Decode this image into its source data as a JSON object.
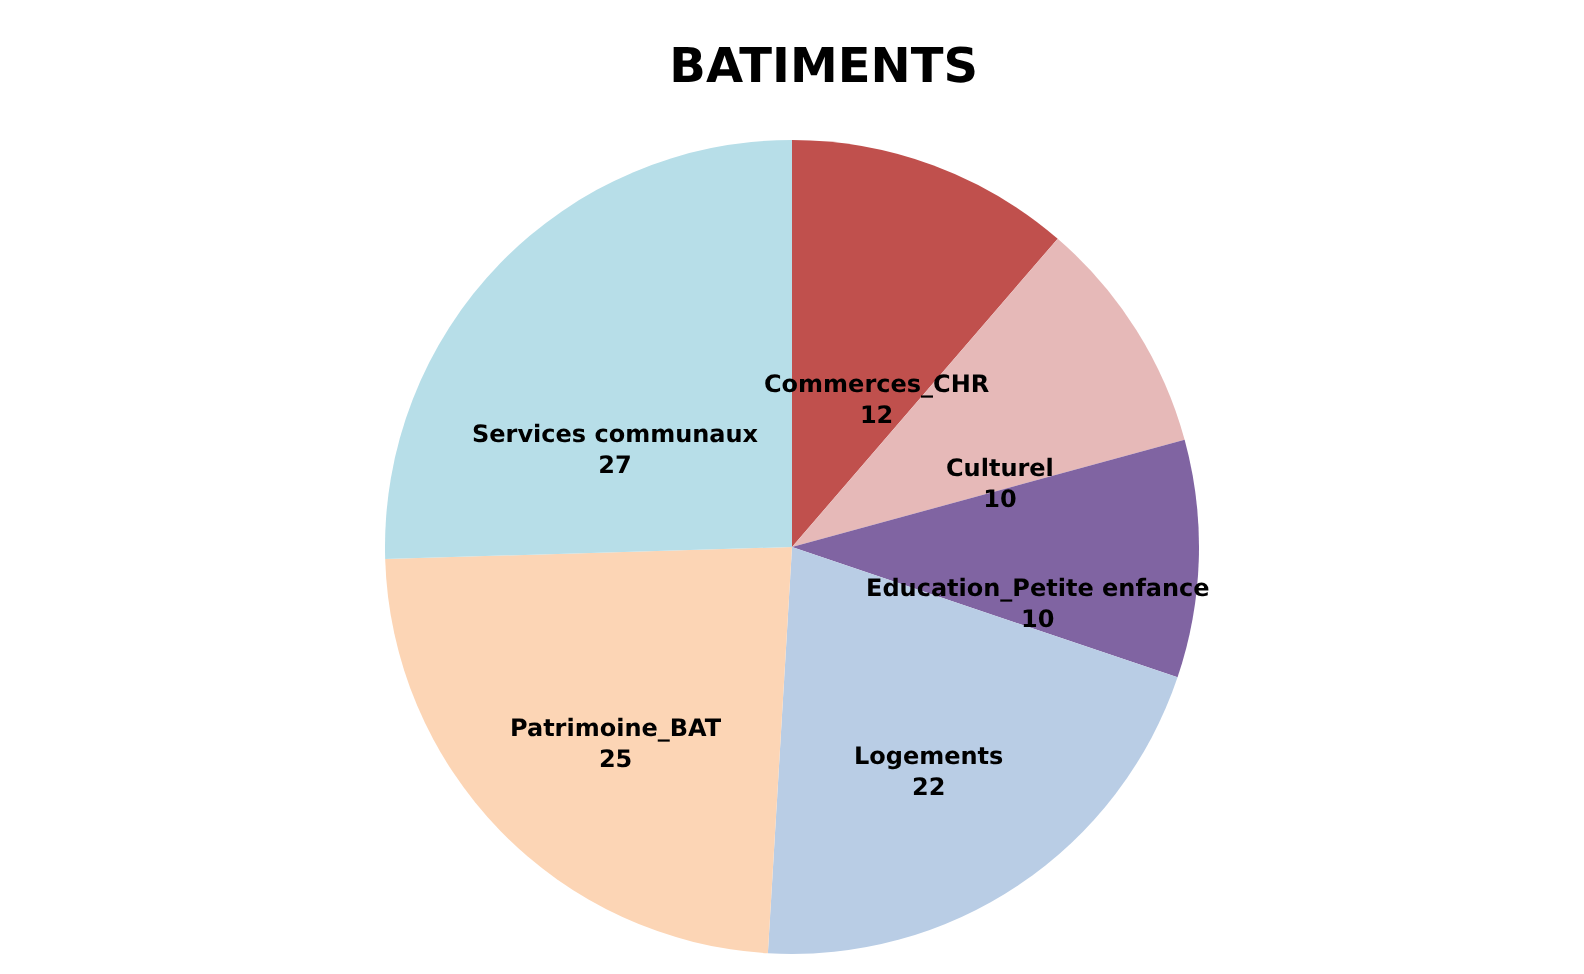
{
  "chart_data": {
    "type": "pie",
    "title": "BATIMENTS",
    "categories": [
      "Commerces_CHR",
      "Culturel",
      "Education_Petite enfance",
      "Logements",
      "Patrimoine_BAT",
      "Services communaux"
    ],
    "values": [
      12,
      10,
      10,
      22,
      25,
      27
    ],
    "colors": [
      "#c0504d",
      "#e6b9b8",
      "#8064a2",
      "#b9cde5",
      "#fcd5b5",
      "#b7dee8"
    ],
    "data_labels": true,
    "legend": false
  }
}
